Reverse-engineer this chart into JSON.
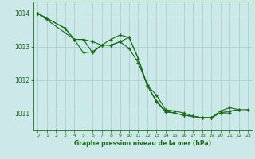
{
  "bg_color": "#cce8e8",
  "grid_color": "#aad4d4",
  "line_color": "#1a6b1a",
  "marker": "+",
  "xlabel": "Graphe pression niveau de la mer (hPa)",
  "xlabel_color": "#1a6b1a",
  "tick_color": "#1a6b1a",
  "label_color": "#1a6b1a",
  "ylim": [
    1010.5,
    1014.35
  ],
  "xlim": [
    -0.5,
    23.5
  ],
  "yticks": [
    1011,
    1012,
    1013,
    1014
  ],
  "xticks": [
    0,
    1,
    2,
    3,
    4,
    5,
    6,
    7,
    8,
    9,
    10,
    11,
    12,
    13,
    14,
    15,
    16,
    17,
    18,
    19,
    20,
    21,
    22,
    23
  ],
  "series": [
    [
      0,
      1014.0
    ],
    [
      1,
      1013.82
    ],
    [
      3,
      1013.55
    ],
    [
      4,
      1013.22
    ],
    [
      5,
      1013.22
    ],
    [
      6,
      1013.15
    ],
    [
      7,
      1013.05
    ],
    [
      8,
      1013.22
    ],
    [
      9,
      1013.35
    ]
  ],
  "series_data": [
    {
      "x": [
        0,
        1
      ],
      "y": [
        1014.0,
        1013.82
      ]
    },
    {
      "x": [
        0,
        3,
        4,
        5,
        6,
        7,
        8,
        9,
        10,
        11,
        12,
        13,
        14,
        15,
        16,
        17,
        18,
        19,
        20,
        21
      ],
      "y": [
        1014.0,
        1013.55,
        1013.22,
        1012.82,
        1012.85,
        1013.05,
        1013.05,
        1013.15,
        1012.95,
        1012.52,
        1011.85,
        1011.35,
        1011.05,
        1011.02,
        1010.95,
        1010.92,
        1010.88,
        1010.88,
        1011.02,
        1011.02
      ]
    },
    {
      "x": [
        0,
        3,
        4,
        5,
        6,
        7,
        8,
        9,
        10,
        11,
        12,
        13,
        14,
        15,
        16,
        17,
        18,
        19,
        20,
        21,
        22
      ],
      "y": [
        1014.0,
        1013.55,
        1013.22,
        1013.22,
        1013.15,
        1013.05,
        1013.22,
        1013.35,
        1013.28,
        1012.65,
        1011.82,
        1011.38,
        1011.08,
        1011.02,
        1010.95,
        1010.92,
        1010.88,
        1010.88,
        1011.02,
        1011.08,
        1011.12
      ]
    },
    {
      "x": [
        0,
        4,
        5,
        6,
        7,
        8,
        9,
        10,
        11,
        12,
        13,
        14,
        15,
        16,
        17,
        18,
        19,
        20,
        21,
        22,
        23
      ],
      "y": [
        1014.0,
        1013.22,
        1013.22,
        1012.82,
        1013.05,
        1013.05,
        1013.15,
        1013.28,
        1012.65,
        1011.85,
        1011.55,
        1011.12,
        1011.08,
        1011.02,
        1010.92,
        1010.88,
        1010.88,
        1011.08,
        1011.18,
        1011.12,
        1011.12
      ]
    }
  ]
}
